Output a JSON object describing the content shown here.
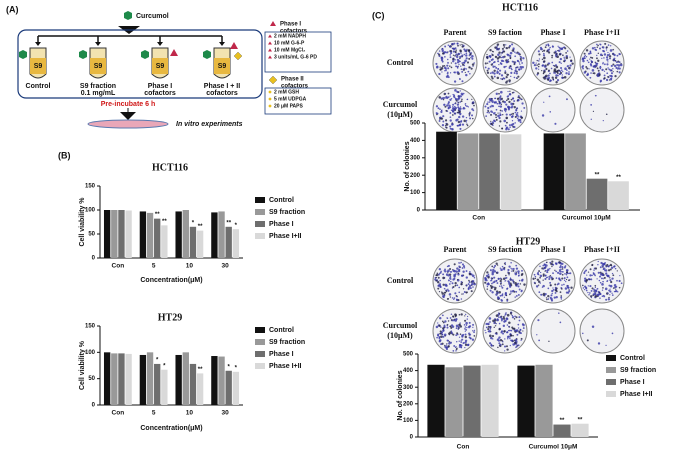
{
  "panel_labels": [
    "(A)",
    "(B)",
    "(C)"
  ],
  "diagram": {
    "compound": "Curcumol",
    "tube_label": "S9",
    "tubes": [
      [
        "Control"
      ],
      [
        "S9 fraction",
        "0.1 mg/mL"
      ],
      [
        "Phase I",
        "cofactors"
      ],
      [
        "Phase I + II",
        "cofactors"
      ]
    ],
    "incubation": "Pre-incubate 6 h",
    "experiment": "In vitro experiments",
    "phase1": {
      "title": [
        "Phase I",
        "cofactors"
      ],
      "items": [
        "2 mM NADPH",
        "10 mM G-6-P",
        "10 mM MgCl₂",
        "3 units/mL G-6 PD"
      ]
    },
    "phase2": {
      "title": [
        "Phase II",
        "cofactors"
      ],
      "items": [
        "2 mM GSH",
        "5 mM UDPGA",
        "20 μM PAPS"
      ]
    }
  },
  "plates": [
    {
      "columns": [
        "Parent",
        "S9 faction",
        "Phase I",
        "Phase I+II"
      ],
      "rows": [
        [
          "Control"
        ],
        [
          "Curcumol",
          "(10μM)"
        ]
      ]
    },
    {
      "columns": [
        "Parent",
        "S9 faction",
        "Phase I",
        "Phase I+II"
      ],
      "rows": [
        [
          "Control"
        ],
        [
          "Curcumol",
          "(10μM)"
        ]
      ]
    }
  ],
  "chart_data": [
    {
      "type": "bar",
      "title": "HCT116",
      "ylabel": "Cell viability %",
      "xlabel": "Concentration(μM)",
      "categories": [
        "Con",
        "5",
        "10",
        "30"
      ],
      "ylim": [
        0,
        150
      ],
      "yticks": [
        0,
        50,
        100,
        150
      ],
      "series": [
        {
          "name": "Control",
          "color": "#111111",
          "values": [
            100,
            97,
            97,
            95
          ]
        },
        {
          "name": "S9 fraction",
          "color": "#999999",
          "values": [
            100,
            94,
            100,
            97
          ]
        },
        {
          "name": "Phase I",
          "color": "#6e6e6e",
          "values": [
            100,
            82,
            65,
            65
          ],
          "significance": [
            null,
            "**",
            "*",
            "**"
          ]
        },
        {
          "name": "Phase I+II",
          "color": "#d9d9d9",
          "values": [
            99,
            68,
            57,
            60
          ],
          "significance": [
            null,
            "**",
            "**",
            "*"
          ]
        }
      ]
    },
    {
      "type": "bar",
      "title": "HT29",
      "ylabel": "Cell viability %",
      "xlabel": "Concentration(μM)",
      "categories": [
        "Con",
        "5",
        "10",
        "30"
      ],
      "ylim": [
        0,
        150
      ],
      "yticks": [
        0,
        50,
        100,
        150
      ],
      "series": [
        {
          "name": "Control",
          "color": "#111111",
          "values": [
            100,
            95,
            95,
            93
          ]
        },
        {
          "name": "S9 fraction",
          "color": "#999999",
          "values": [
            98,
            100,
            100,
            92
          ]
        },
        {
          "name": "Phase I",
          "color": "#6e6e6e",
          "values": [
            98,
            78,
            78,
            65
          ],
          "significance": [
            null,
            "*",
            null,
            "*"
          ]
        },
        {
          "name": "Phase I+II",
          "color": "#d9d9d9",
          "values": [
            97,
            67,
            60,
            63
          ],
          "significance": [
            null,
            "*",
            "**",
            "*"
          ]
        }
      ]
    },
    {
      "type": "bar",
      "title": "HCT116",
      "ylabel": "No. of colonies",
      "categories": [
        "Con",
        "Curcumol 10μM"
      ],
      "ylim": [
        0,
        500
      ],
      "yticks": [
        0,
        100,
        200,
        300,
        400,
        500
      ],
      "series": [
        {
          "color": "#111111",
          "values": [
            450,
            440
          ]
        },
        {
          "color": "#999999",
          "values": [
            440,
            440
          ]
        },
        {
          "color": "#6e6e6e",
          "values": [
            440,
            180
          ],
          "significance": [
            null,
            "**"
          ]
        },
        {
          "color": "#d9d9d9",
          "values": [
            435,
            165
          ],
          "significance": [
            null,
            "**"
          ]
        }
      ]
    },
    {
      "type": "bar",
      "title": "HT29",
      "ylabel": "No. of colonies",
      "categories": [
        "Con",
        "Curcumol 10μM"
      ],
      "ylim": [
        0,
        500
      ],
      "yticks": [
        0,
        100,
        200,
        300,
        400,
        500
      ],
      "series": [
        {
          "name": "Control",
          "color": "#111111",
          "values": [
            435,
            430
          ]
        },
        {
          "name": "S9 fraction",
          "color": "#999999",
          "values": [
            420,
            435
          ]
        },
        {
          "name": "Phase I",
          "color": "#6e6e6e",
          "values": [
            430,
            75
          ],
          "significance": [
            null,
            "**"
          ]
        },
        {
          "name": "Phase I+II",
          "color": "#d9d9d9",
          "values": [
            435,
            80
          ],
          "significance": [
            null,
            "**"
          ]
        }
      ]
    }
  ]
}
